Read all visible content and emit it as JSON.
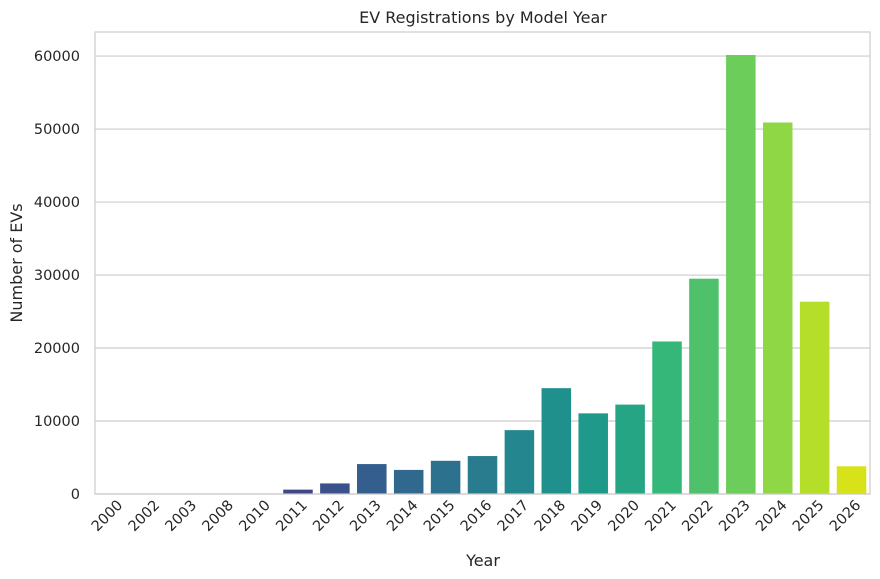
{
  "chart_data": {
    "type": "bar",
    "title": "EV Registrations by Model Year",
    "xlabel": "Year",
    "ylabel": "Number of EVs",
    "categories": [
      "2000",
      "2002",
      "2003",
      "2008",
      "2010",
      "2011",
      "2012",
      "2013",
      "2014",
      "2015",
      "2016",
      "2017",
      "2018",
      "2019",
      "2020",
      "2021",
      "2022",
      "2023",
      "2024",
      "2025",
      "2026"
    ],
    "values": [
      8,
      3,
      12,
      25,
      30,
      600,
      1450,
      4100,
      3300,
      4550,
      5200,
      8750,
      14500,
      11050,
      12250,
      20900,
      29500,
      60150,
      50900,
      26350,
      3800
    ],
    "ylim": [
      0,
      63300
    ],
    "yticks": [
      "0",
      "10000",
      "20000",
      "30000",
      "40000",
      "50000",
      "60000"
    ],
    "grid": "horizontal",
    "colormap": "viridis",
    "colors": [
      "#450457",
      "#471365",
      "#482172",
      "#472e7c",
      "#433b83",
      "#3f4788",
      "#3a528b",
      "#345e8d",
      "#30688e",
      "#2c728e",
      "#287c8e",
      "#24868e",
      "#20908d",
      "#1f9a8a",
      "#25a584",
      "#35b779",
      "#4fc16b",
      "#6ccd5a",
      "#8fd744",
      "#b5de2b",
      "#d8e219"
    ]
  }
}
